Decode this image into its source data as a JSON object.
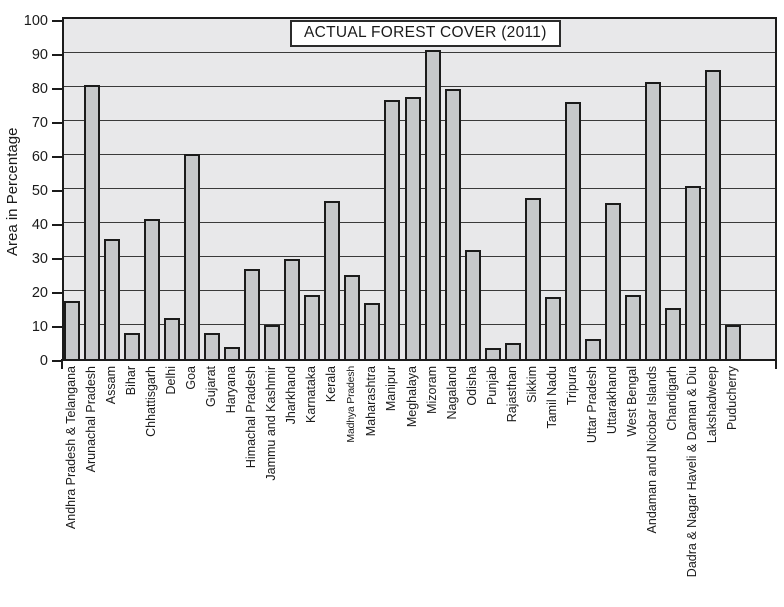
{
  "chart_data": {
    "type": "bar",
    "title": "ACTUAL FOREST COVER (2011)",
    "xlabel": "",
    "ylabel": "Area in Percentage",
    "ylim": [
      0,
      100
    ],
    "ytick_interval": 10,
    "ytick_labels": [
      "0",
      "10",
      "20",
      "30",
      "40",
      "50",
      "60",
      "70",
      "80",
      "90",
      "100"
    ],
    "grid": "horizontal",
    "legend": "none",
    "categories": [
      "Andhra Pradesh & Telangana",
      "Arunachal Pradesh",
      "Assam",
      "Bihar",
      "Chhattisgarh",
      "Delhi",
      "Goa",
      "Gujarat",
      "Haryana",
      "Himachal Pradesh",
      "Jammu and Kashmir",
      "Jharkhand",
      "Karnataka",
      "Kerala",
      "Madhya Pradesh",
      "Maharashtra",
      "Manipur",
      "Meghalaya",
      "Mizoram",
      "Nagaland",
      "Odisha",
      "Punjab",
      "Rajasthan",
      "Sikkim",
      "Tamil Nadu",
      "Tripura",
      "Uttar Pradesh",
      "Uttarakhand",
      "West Bengal",
      "Andaman and Nicobar Islands",
      "Chandigarh",
      "Dadra & Nagar Haveli & Daman & Diu",
      "Lakshadweep",
      "Puducherry"
    ],
    "values": [
      17,
      80.5,
      35.3,
      7.7,
      41.2,
      12.2,
      60.2,
      7.5,
      3.6,
      26.4,
      10,
      29.5,
      18.8,
      46.5,
      24.8,
      16.5,
      76.2,
      77.2,
      91,
      79.3,
      32.2,
      3.3,
      4.7,
      47.3,
      18.2,
      75.5,
      6,
      46,
      18.9,
      81.5,
      15.1,
      51,
      85,
      9.9
    ],
    "small_font_categories": [
      "Madhya Pradesh"
    ],
    "colors": {
      "bar_fill": "#c6c8ca",
      "bar_border": "#1b1b1b",
      "plot_background": "#e8e8ea",
      "grid_line": "#3a3a3a",
      "axis": "#1b1b1b",
      "title_box_background": "#ffffff",
      "text": "#1a1a1a"
    }
  }
}
